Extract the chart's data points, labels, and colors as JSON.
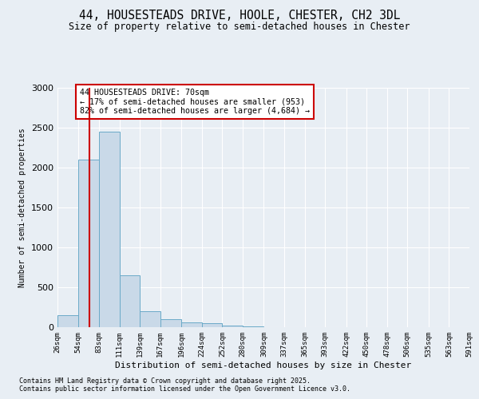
{
  "title": "44, HOUSESTEADS DRIVE, HOOLE, CHESTER, CH2 3DL",
  "subtitle": "Size of property relative to semi-detached houses in Chester",
  "xlabel": "Distribution of semi-detached houses by size in Chester",
  "ylabel": "Number of semi-detached properties",
  "property_label": "44 HOUSESTEADS DRIVE: 70sqm",
  "pct_smaller": "← 17% of semi-detached houses are smaller (953)",
  "pct_larger": "82% of semi-detached houses are larger (4,684) →",
  "property_size": 70,
  "bar_color": "#c9d9e8",
  "bar_edge_color": "#6baac8",
  "vline_color": "#cc0000",
  "annotation_box_color": "#cc0000",
  "background_color": "#e8eef4",
  "grid_color": "#ffffff",
  "categories": [
    "26sqm",
    "54sqm",
    "83sqm",
    "111sqm",
    "139sqm",
    "167sqm",
    "196sqm",
    "224sqm",
    "252sqm",
    "280sqm",
    "309sqm",
    "337sqm",
    "365sqm",
    "393sqm",
    "422sqm",
    "450sqm",
    "478sqm",
    "506sqm",
    "535sqm",
    "563sqm",
    "591sqm"
  ],
  "bin_edges": [
    26,
    54,
    83,
    111,
    139,
    167,
    196,
    224,
    252,
    280,
    309,
    337,
    365,
    393,
    422,
    450,
    478,
    506,
    535,
    563,
    591
  ],
  "values": [
    150,
    2100,
    2450,
    650,
    200,
    100,
    60,
    50,
    20,
    10,
    0,
    0,
    0,
    0,
    0,
    0,
    0,
    0,
    0,
    0
  ],
  "ylim": [
    0,
    3000
  ],
  "yticks": [
    0,
    500,
    1000,
    1500,
    2000,
    2500,
    3000
  ],
  "footer_line1": "Contains HM Land Registry data © Crown copyright and database right 2025.",
  "footer_line2": "Contains public sector information licensed under the Open Government Licence v3.0."
}
